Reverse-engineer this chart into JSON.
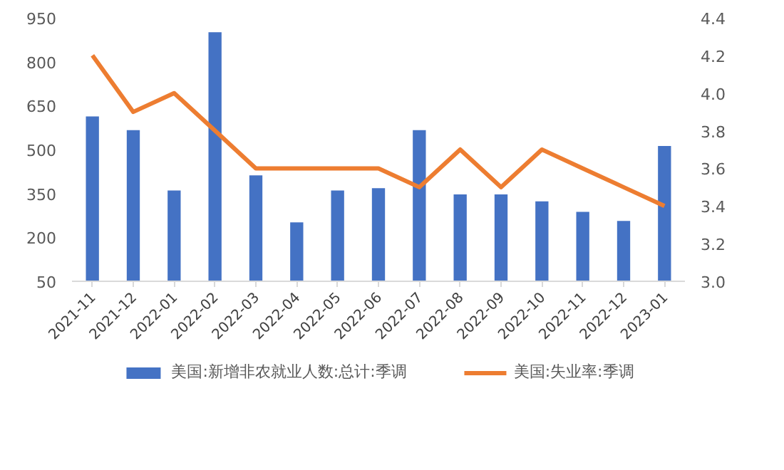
{
  "chart_data": {
    "type": "bar",
    "categories": [
      "2021-11",
      "2021-12",
      "2022-01",
      "2022-02",
      "2022-03",
      "2022-04",
      "2022-05",
      "2022-06",
      "2022-07",
      "2022-08",
      "2022-09",
      "2022-10",
      "2022-11",
      "2022-12",
      "2023-01"
    ],
    "series": [
      {
        "name": "美国:新增非农就业人数:总计:季调",
        "color": "#4472c4",
        "values": [
          613,
          566,
          360,
          901,
          412,
          251,
          360,
          368,
          566,
          347,
          347,
          323,
          287,
          256,
          512
        ]
      },
      {
        "name": "美国:失业率:季调",
        "type": "line",
        "axis": "y2",
        "color": "#ed7d31",
        "values": [
          4.2,
          3.9,
          4.0,
          3.8,
          3.6,
          3.6,
          3.6,
          3.6,
          3.5,
          3.7,
          3.5,
          3.7,
          3.6,
          3.5,
          3.4
        ]
      }
    ],
    "ylim": [
      50,
      950
    ],
    "yticks": [
      50,
      200,
      350,
      500,
      650,
      800,
      950
    ],
    "y2lim": [
      3.0,
      4.4
    ],
    "y2ticks": [
      {
        "value": 3.0,
        "label": "3.0"
      },
      {
        "value": 3.2,
        "label": "3.2"
      },
      {
        "value": 3.4,
        "label": "3.4"
      },
      {
        "value": 3.6,
        "label": "3.6"
      },
      {
        "value": 3.8,
        "label": "3.8"
      },
      {
        "value": 4.0,
        "label": "4.0"
      },
      {
        "value": 4.2,
        "label": "4.2"
      },
      {
        "value": 4.4,
        "label": "4.4"
      }
    ],
    "grid": false,
    "legend": "bottom"
  }
}
